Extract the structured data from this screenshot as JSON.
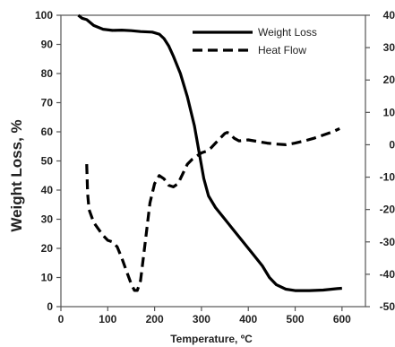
{
  "chart_data": {
    "type": "line",
    "xlabel": "Temperature, ºC",
    "ylabel": "Weight Loss, %",
    "y2label": "",
    "xlim": [
      0,
      650
    ],
    "ylim": [
      0,
      100
    ],
    "y2lim": [
      -50,
      40
    ],
    "x_ticks": [
      "0",
      "100",
      "200",
      "300",
      "400",
      "500",
      "600"
    ],
    "x_tick_values": [
      0,
      100,
      200,
      300,
      400,
      500,
      600
    ],
    "y_ticks": [
      "0",
      "10",
      "20",
      "30",
      "40",
      "50",
      "60",
      "70",
      "80",
      "90",
      "100"
    ],
    "y_tick_values": [
      0,
      10,
      20,
      30,
      40,
      50,
      60,
      70,
      80,
      90,
      100
    ],
    "y2_ticks": [
      "-50",
      "-40",
      "-30",
      "-20",
      "-10",
      "0",
      "10",
      "20",
      "30",
      "40"
    ],
    "y2_tick_values": [
      -50,
      -40,
      -30,
      -20,
      -10,
      0,
      10,
      20,
      30,
      40
    ],
    "grid": false,
    "legend_position": "top-right",
    "series": [
      {
        "name": "Weight Loss",
        "axis": "left",
        "style": "solid",
        "color": "#000000",
        "points": [
          [
            37,
            100
          ],
          [
            45,
            99
          ],
          [
            55,
            98.5
          ],
          [
            70,
            96.5
          ],
          [
            90,
            95.2
          ],
          [
            110,
            94.8
          ],
          [
            130,
            94.9
          ],
          [
            150,
            94.7
          ],
          [
            170,
            94.4
          ],
          [
            195,
            94.2
          ],
          [
            210,
            93.5
          ],
          [
            220,
            92
          ],
          [
            230,
            89.5
          ],
          [
            240,
            86
          ],
          [
            255,
            80
          ],
          [
            270,
            72
          ],
          [
            285,
            62
          ],
          [
            295,
            53
          ],
          [
            305,
            44
          ],
          [
            315,
            38
          ],
          [
            330,
            34
          ],
          [
            350,
            30
          ],
          [
            370,
            26
          ],
          [
            390,
            22
          ],
          [
            410,
            18
          ],
          [
            430,
            14
          ],
          [
            445,
            10
          ],
          [
            460,
            7.5
          ],
          [
            480,
            6
          ],
          [
            500,
            5.5
          ],
          [
            530,
            5.5
          ],
          [
            560,
            5.7
          ],
          [
            590,
            6.2
          ],
          [
            600,
            6.3
          ]
        ]
      },
      {
        "name": "Heat Flow",
        "axis": "right",
        "style": "dashed",
        "color": "#000000",
        "points": [
          [
            55,
            -6
          ],
          [
            57,
            -15
          ],
          [
            60,
            -20
          ],
          [
            70,
            -24
          ],
          [
            80,
            -26
          ],
          [
            90,
            -28
          ],
          [
            100,
            -29.5
          ],
          [
            110,
            -30
          ],
          [
            120,
            -31.5
          ],
          [
            130,
            -35
          ],
          [
            140,
            -39
          ],
          [
            150,
            -43
          ],
          [
            157,
            -45
          ],
          [
            163,
            -45
          ],
          [
            170,
            -42
          ],
          [
            180,
            -30
          ],
          [
            190,
            -18
          ],
          [
            200,
            -12
          ],
          [
            210,
            -9.5
          ],
          [
            220,
            -10.5
          ],
          [
            230,
            -12.5
          ],
          [
            240,
            -13
          ],
          [
            250,
            -12
          ],
          [
            260,
            -9
          ],
          [
            270,
            -6
          ],
          [
            280,
            -4.5
          ],
          [
            290,
            -3.5
          ],
          [
            300,
            -2.5
          ],
          [
            310,
            -2
          ],
          [
            320,
            -1
          ],
          [
            330,
            0.5
          ],
          [
            340,
            2
          ],
          [
            350,
            3.5
          ],
          [
            355,
            3.8
          ],
          [
            360,
            3.5
          ],
          [
            370,
            2
          ],
          [
            380,
            1.2
          ],
          [
            400,
            1.5
          ],
          [
            420,
            1
          ],
          [
            440,
            0.5
          ],
          [
            460,
            0.2
          ],
          [
            480,
            0
          ],
          [
            500,
            0.5
          ],
          [
            520,
            1.2
          ],
          [
            540,
            2
          ],
          [
            560,
            3
          ],
          [
            580,
            4
          ],
          [
            595,
            5
          ]
        ]
      }
    ]
  }
}
